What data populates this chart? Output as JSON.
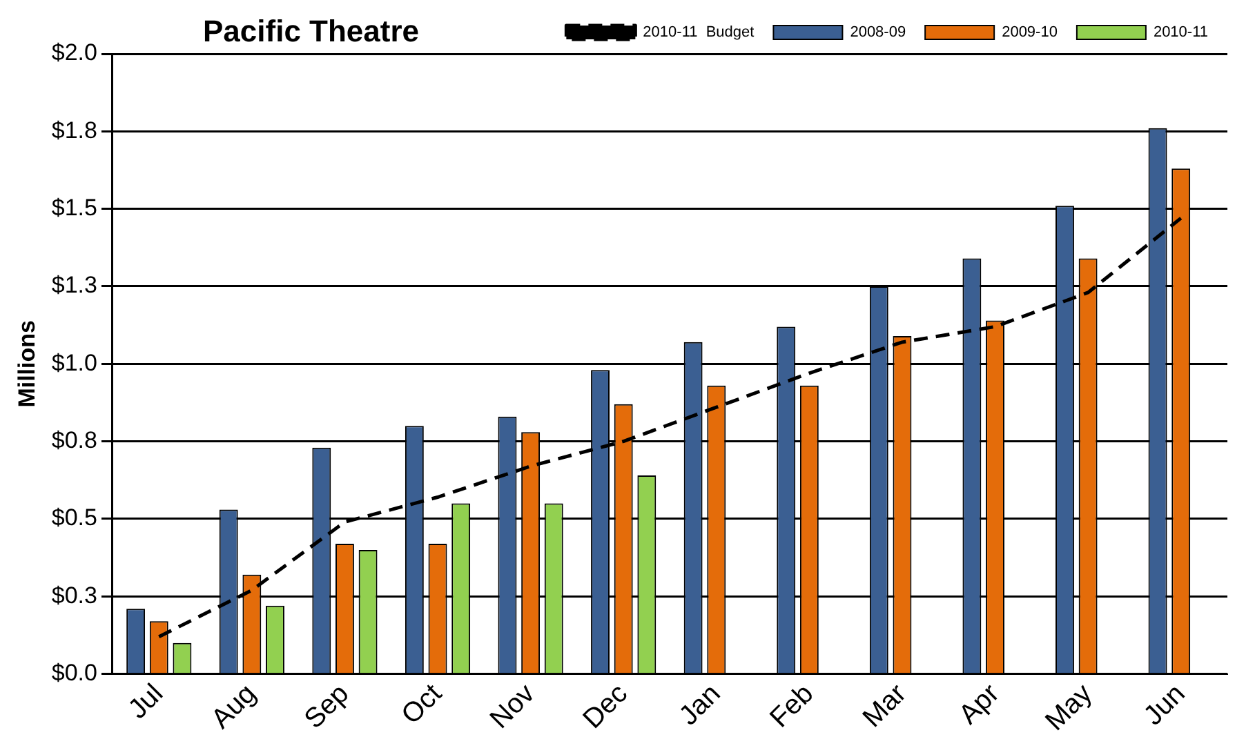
{
  "chart_data": {
    "type": "bar",
    "title": "Pacific Theatre",
    "ylabel": "Millions",
    "categories": [
      "Jul",
      "Aug",
      "Sep",
      "Oct",
      "Nov",
      "Dec",
      "Jan",
      "Feb",
      "Mar",
      "Apr",
      "May",
      "Jun"
    ],
    "series": [
      {
        "name": "2008-09",
        "color": "#3b5f92",
        "values": [
          0.21,
          0.53,
          0.73,
          0.8,
          0.83,
          0.98,
          1.07,
          1.12,
          1.25,
          1.34,
          1.51,
          1.76
        ]
      },
      {
        "name": "2009-10",
        "color": "#e46c0a",
        "values": [
          0.17,
          0.32,
          0.42,
          0.42,
          0.78,
          0.87,
          0.93,
          0.93,
          1.09,
          1.14,
          1.34,
          1.63
        ]
      },
      {
        "name": "2010-11",
        "color": "#92d050",
        "values": [
          0.1,
          0.22,
          0.4,
          0.55,
          0.55,
          0.64,
          null,
          null,
          null,
          null,
          null,
          null
        ]
      },
      {
        "name": "2010-11  Budget",
        "type": "line",
        "color": "#000000",
        "line_style": "dashed",
        "marker": "none",
        "values": [
          0.12,
          0.27,
          0.49,
          0.57,
          0.67,
          0.75,
          0.86,
          0.97,
          1.07,
          1.12,
          1.23,
          1.47
        ]
      }
    ],
    "ylim": [
      0,
      2
    ],
    "yticks": [
      {
        "value": 0,
        "label": "$0.0"
      },
      {
        "value": 0.25,
        "label": "$0.3"
      },
      {
        "value": 0.5,
        "label": "$0.5"
      },
      {
        "value": 0.75,
        "label": "$0.8"
      },
      {
        "value": 1,
        "label": "$1.0"
      },
      {
        "value": 1.25,
        "label": "$1.3"
      },
      {
        "value": 1.5,
        "label": "$1.5"
      },
      {
        "value": 1.75,
        "label": "$1.8"
      },
      {
        "value": 2,
        "label": "$2.0"
      }
    ],
    "grid": "y",
    "legend": "top right"
  }
}
